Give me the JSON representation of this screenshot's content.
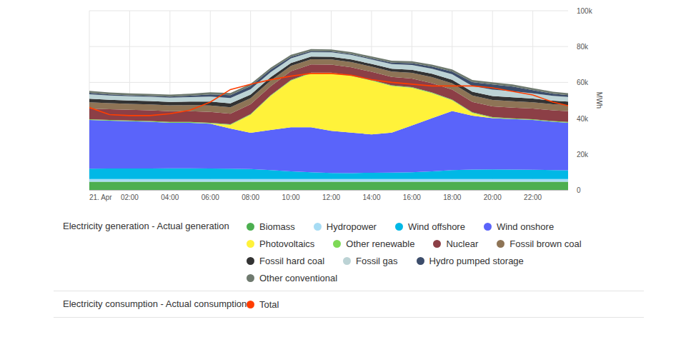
{
  "chart_data": {
    "type": "area",
    "stacked": true,
    "grid": true,
    "y_label": "MWh",
    "x": [
      0,
      1,
      2,
      3,
      4,
      5,
      6,
      7,
      8,
      9,
      10,
      11,
      12,
      13,
      14,
      15,
      16,
      17,
      18,
      19,
      20,
      21,
      22,
      23,
      23.75
    ],
    "xlim": [
      0,
      23.75
    ],
    "xticks": [
      {
        "value": 0,
        "label": "21. Apr"
      },
      {
        "value": 2,
        "label": "02:00"
      },
      {
        "value": 4,
        "label": "04:00"
      },
      {
        "value": 6,
        "label": "06:00"
      },
      {
        "value": 8,
        "label": "08:00"
      },
      {
        "value": 10,
        "label": "10:00"
      },
      {
        "value": 12,
        "label": "12:00"
      },
      {
        "value": 14,
        "label": "14:00"
      },
      {
        "value": 16,
        "label": "16:00"
      },
      {
        "value": 18,
        "label": "18:00"
      },
      {
        "value": 20,
        "label": "20:00"
      },
      {
        "value": 22,
        "label": "22:00"
      }
    ],
    "ylim": [
      0,
      100000
    ],
    "yticks": [
      0,
      {
        "value": 20000,
        "label": "20k"
      },
      {
        "value": 40000,
        "label": "40k"
      },
      {
        "value": 60000,
        "label": "60k"
      },
      {
        "value": 80000,
        "label": "80k"
      },
      {
        "value": 100000,
        "label": "100k"
      }
    ],
    "series": [
      {
        "name": "Biomass",
        "group": "Electricity generation - Actual generation",
        "color": "#4caf50",
        "values": [
          4600,
          4600,
          4600,
          4600,
          4600,
          4600,
          4600,
          4600,
          4600,
          4600,
          4600,
          4600,
          4600,
          4600,
          4600,
          4600,
          4600,
          4600,
          4600,
          4600,
          4600,
          4600,
          4600,
          4600,
          4600
        ]
      },
      {
        "name": "Hydropower",
        "group": "Electricity generation - Actual generation",
        "color": "#a7dcf4",
        "values": [
          1500,
          1500,
          1500,
          1500,
          1500,
          1500,
          1500,
          1500,
          1500,
          1500,
          1500,
          1500,
          1500,
          1500,
          1500,
          1500,
          1500,
          1500,
          1500,
          1500,
          1500,
          1500,
          1500,
          1500,
          1500
        ]
      },
      {
        "name": "Wind offshore",
        "group": "Electricity generation - Actual generation",
        "color": "#00b8e6",
        "values": [
          5800,
          5900,
          5900,
          5900,
          6000,
          6000,
          5900,
          5800,
          5600,
          5000,
          4300,
          3800,
          3400,
          3300,
          3500,
          3600,
          3800,
          4300,
          5000,
          5300,
          5400,
          5300,
          5200,
          5000,
          4900
        ]
      },
      {
        "name": "Wind onshore",
        "group": "Electricity generation - Actual generation",
        "color": "#5a64fa",
        "values": [
          27100,
          26600,
          26300,
          26000,
          25400,
          25400,
          25000,
          22400,
          20200,
          22400,
          24600,
          25100,
          23500,
          22600,
          21400,
          22300,
          26100,
          29600,
          32900,
          30000,
          28500,
          28100,
          27700,
          26900,
          26500
        ]
      },
      {
        "name": "Photovoltaics",
        "group": "Electricity generation - Actual generation",
        "color": "#fff23a",
        "values": [
          0,
          0,
          0,
          0,
          0,
          0,
          100,
          2000,
          10000,
          19000,
          26000,
          30000,
          32000,
          31500,
          30000,
          26000,
          21000,
          14000,
          6000,
          1500,
          200,
          0,
          0,
          0,
          0
        ]
      },
      {
        "name": "Other renewable",
        "group": "Electricity generation - Actual generation",
        "color": "#7ed957",
        "values": [
          400,
          400,
          400,
          400,
          400,
          400,
          400,
          400,
          400,
          400,
          400,
          400,
          400,
          400,
          400,
          400,
          400,
          400,
          400,
          400,
          400,
          400,
          400,
          400,
          400
        ]
      },
      {
        "name": "Nuclear",
        "group": "Electricity generation - Actual generation",
        "color": "#8c3f46",
        "values": [
          6000,
          6000,
          6000,
          6000,
          6000,
          6000,
          6000,
          5800,
          5500,
          5000,
          4800,
          4600,
          4500,
          4500,
          4500,
          4600,
          4800,
          5200,
          5600,
          5800,
          6000,
          6000,
          6000,
          6000,
          6000
        ]
      },
      {
        "name": "Fossil brown coal",
        "group": "Electricity generation - Actual generation",
        "color": "#8e7456",
        "values": [
          3500,
          3400,
          3300,
          3300,
          3300,
          3400,
          3600,
          3600,
          3400,
          3200,
          3000,
          2900,
          2900,
          2900,
          2900,
          3000,
          3100,
          3300,
          3500,
          3600,
          3600,
          3600,
          3500,
          3400,
          3400
        ]
      },
      {
        "name": "Fossil hard coal",
        "group": "Electricity generation - Actual generation",
        "color": "#333333",
        "values": [
          2000,
          1900,
          1900,
          1900,
          1900,
          2000,
          2200,
          2200,
          2000,
          1800,
          1600,
          1500,
          1500,
          1500,
          1500,
          1600,
          1700,
          1900,
          2000,
          2100,
          2200,
          2200,
          2100,
          2000,
          2000
        ]
      },
      {
        "name": "Fossil gas",
        "group": "Electricity generation - Actual generation",
        "color": "#bcd3d5",
        "values": [
          2500,
          2400,
          2400,
          2400,
          2400,
          2500,
          2800,
          3000,
          3000,
          2800,
          2600,
          2500,
          2500,
          2500,
          2500,
          2600,
          2700,
          2800,
          3000,
          3200,
          3600,
          3400,
          2900,
          2700,
          2600
        ]
      },
      {
        "name": "Hydro pumped storage",
        "group": "Electricity generation - Actual generation",
        "color": "#3c4d6b",
        "values": [
          800,
          600,
          500,
          500,
          600,
          800,
          1200,
          1600,
          1800,
          1400,
          900,
          600,
          500,
          500,
          600,
          800,
          1000,
          1200,
          1500,
          2200,
          2900,
          2600,
          1800,
          1200,
          1000
        ]
      },
      {
        "name": "Other conventional",
        "group": "Electricity generation - Actual generation",
        "color": "#6f7a6f",
        "values": [
          1100,
          1100,
          1100,
          1100,
          1100,
          1100,
          1200,
          1200,
          1200,
          1100,
          1100,
          1100,
          1100,
          1100,
          1100,
          1100,
          1100,
          1100,
          1200,
          1200,
          1200,
          1200,
          1100,
          1100,
          1100
        ]
      },
      {
        "name": "Total",
        "group": "Electricity consumption - Actual consumption",
        "type": "line",
        "color": "#ff3d00",
        "values": [
          46000,
          42000,
          41500,
          41500,
          42500,
          44500,
          49000,
          56000,
          59000,
          61500,
          63500,
          65000,
          65000,
          64000,
          61500,
          60000,
          59000,
          58000,
          58000,
          58000,
          57000,
          55000,
          53000,
          49000,
          47000
        ]
      }
    ]
  }
}
